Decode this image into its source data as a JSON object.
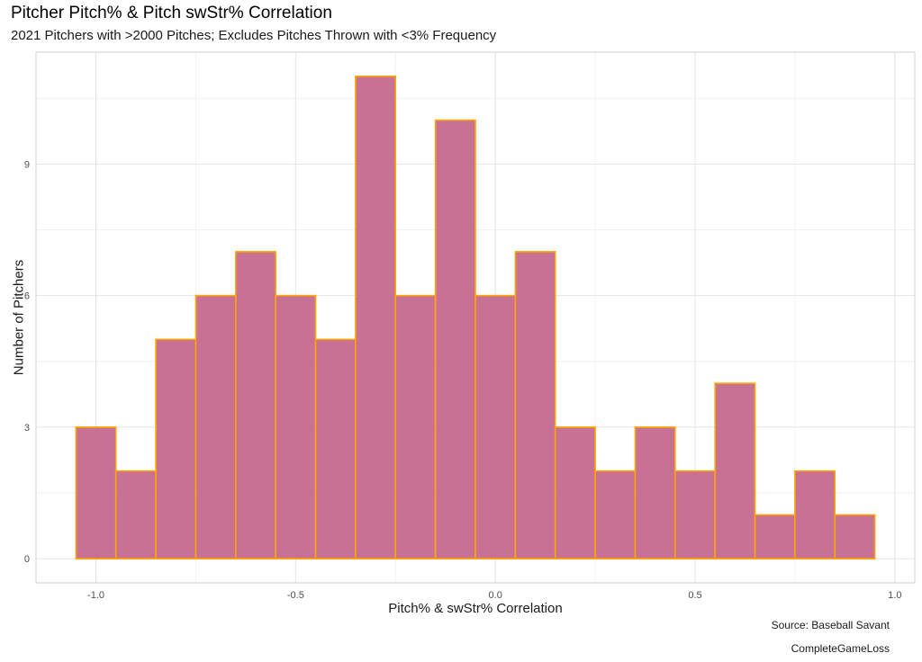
{
  "title": "Pitcher Pitch% &  Pitch swStr% Correlation",
  "subtitle": "2021 Pitchers with >2000 Pitches; Excludes Pitches Thrown with <3% Frequency",
  "caption_source": "Source: Baseball Savant",
  "caption_credit": "CompleteGameLoss",
  "colors": {
    "bar_fill": "#c2628a",
    "bar_stroke": "#ffa500",
    "grid_major": "#e4e4e4",
    "grid_minor": "#f2f2f2",
    "panel_border": "#d0d0d0"
  },
  "chart_data": {
    "type": "bar",
    "title": "Pitcher Pitch% &  Pitch swStr% Correlation",
    "subtitle": "2021 Pitchers with >2000 Pitches; Excludes Pitches Thrown with <3% Frequency",
    "xlabel": "Pitch% & swStr% Correlation",
    "ylabel": "Number of Pitchers",
    "bin_width": 0.1,
    "bin_centers": [
      -1.0,
      -0.9,
      -0.8,
      -0.7,
      -0.6,
      -0.5,
      -0.4,
      -0.3,
      -0.2,
      -0.1,
      0.0,
      0.1,
      0.2,
      0.3,
      0.4,
      0.5,
      0.6,
      0.7,
      0.8,
      0.9
    ],
    "values": [
      3,
      2,
      5,
      6,
      7,
      6,
      5,
      11,
      6,
      10,
      6,
      7,
      3,
      2,
      3,
      2,
      4,
      1,
      2,
      1
    ],
    "xlim": [
      -1.15,
      1.05
    ],
    "ylim": [
      -0.55,
      11.55
    ],
    "x_ticks": [
      -1.0,
      -0.5,
      0.0,
      0.5,
      1.0
    ],
    "x_tick_labels": [
      "-1.0",
      "-0.5",
      "0.0",
      "0.5",
      "1.0"
    ],
    "y_ticks": [
      0,
      3,
      6,
      9
    ],
    "y_tick_labels": [
      "0",
      "3",
      "6",
      "9"
    ],
    "grid": true,
    "legend": "none"
  }
}
